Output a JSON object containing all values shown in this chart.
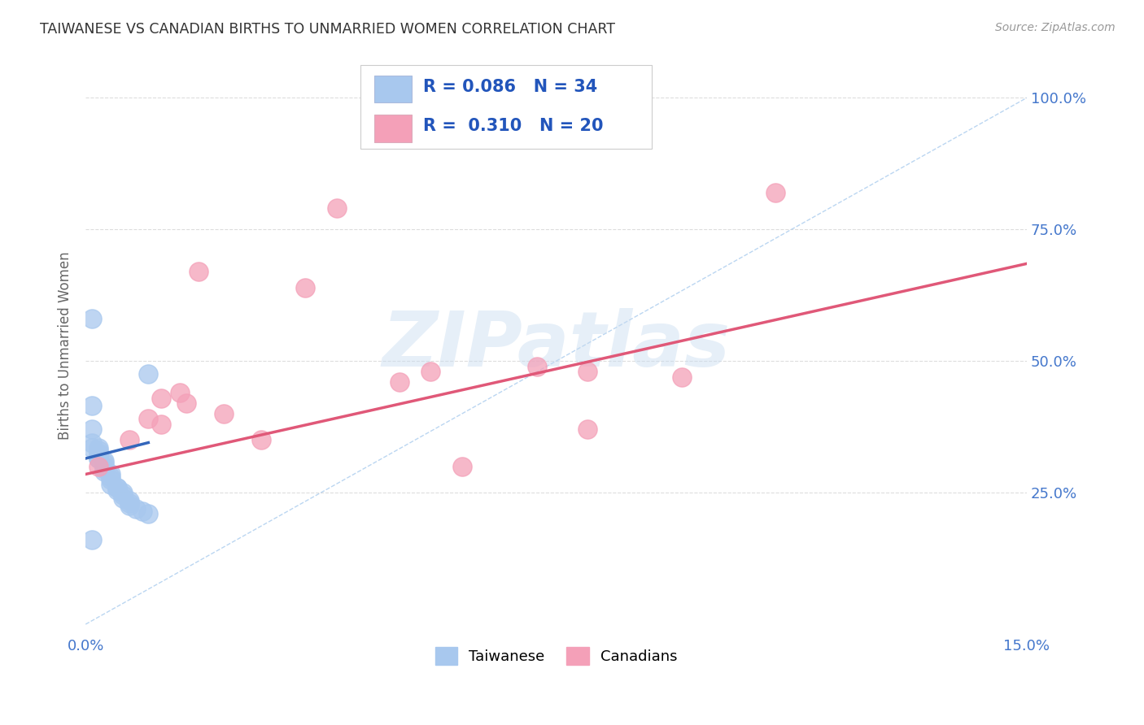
{
  "title": "TAIWANESE VS CANADIAN BIRTHS TO UNMARRIED WOMEN CORRELATION CHART",
  "source": "Source: ZipAtlas.com",
  "ylabel": "Births to Unmarried Women",
  "xlabel": "",
  "watermark": "ZIPatlas",
  "xlim": [
    0.0,
    0.15
  ],
  "ylim": [
    -0.02,
    1.08
  ],
  "ytick_vals": [
    0.25,
    0.5,
    0.75,
    1.0
  ],
  "ytick_labels": [
    "25.0%",
    "50.0%",
    "75.0%",
    "100.0%"
  ],
  "xtick_vals": [
    0.0,
    0.15
  ],
  "xtick_labels": [
    "0.0%",
    "15.0%"
  ],
  "taiwan_R": "0.086",
  "taiwan_N": "34",
  "canada_R": "0.310",
  "canada_N": "20",
  "taiwan_color": "#a8c8ee",
  "canada_color": "#f4a0b8",
  "taiwan_line_color": "#3366bb",
  "canada_line_color": "#e05878",
  "dashed_line_color": "#aaccee",
  "taiwan_scatter_x": [
    0.001,
    0.001,
    0.001,
    0.001,
    0.002,
    0.002,
    0.002,
    0.002,
    0.002,
    0.002,
    0.003,
    0.003,
    0.003,
    0.003,
    0.003,
    0.004,
    0.004,
    0.004,
    0.004,
    0.005,
    0.005,
    0.005,
    0.006,
    0.006,
    0.006,
    0.007,
    0.007,
    0.007,
    0.008,
    0.009,
    0.01,
    0.01,
    0.001,
    0.001
  ],
  "taiwan_scatter_y": [
    0.415,
    0.37,
    0.345,
    0.335,
    0.335,
    0.33,
    0.325,
    0.325,
    0.315,
    0.315,
    0.31,
    0.305,
    0.3,
    0.295,
    0.29,
    0.285,
    0.28,
    0.275,
    0.265,
    0.26,
    0.26,
    0.255,
    0.25,
    0.245,
    0.24,
    0.235,
    0.23,
    0.225,
    0.22,
    0.215,
    0.475,
    0.21,
    0.58,
    0.16
  ],
  "canada_scatter_x": [
    0.002,
    0.007,
    0.01,
    0.012,
    0.012,
    0.015,
    0.016,
    0.018,
    0.022,
    0.028,
    0.035,
    0.04,
    0.05,
    0.055,
    0.06,
    0.072,
    0.08,
    0.095,
    0.11,
    0.08
  ],
  "canada_scatter_y": [
    0.3,
    0.35,
    0.39,
    0.43,
    0.38,
    0.44,
    0.42,
    0.67,
    0.4,
    0.35,
    0.64,
    0.79,
    0.46,
    0.48,
    0.3,
    0.49,
    0.48,
    0.47,
    0.82,
    0.37
  ],
  "taiwan_line_x": [
    0.0,
    0.01
  ],
  "taiwan_line_y": [
    0.315,
    0.345
  ],
  "canada_line_x": [
    0.0,
    0.15
  ],
  "canada_line_y": [
    0.285,
    0.685
  ],
  "dashed_line_x": [
    0.0,
    0.15
  ],
  "dashed_line_y": [
    0.0,
    1.0
  ],
  "background_color": "#ffffff",
  "grid_color": "#dddddd",
  "axis_label_color": "#4477cc",
  "title_color": "#333333",
  "legend_R_color": "#2255bb"
}
